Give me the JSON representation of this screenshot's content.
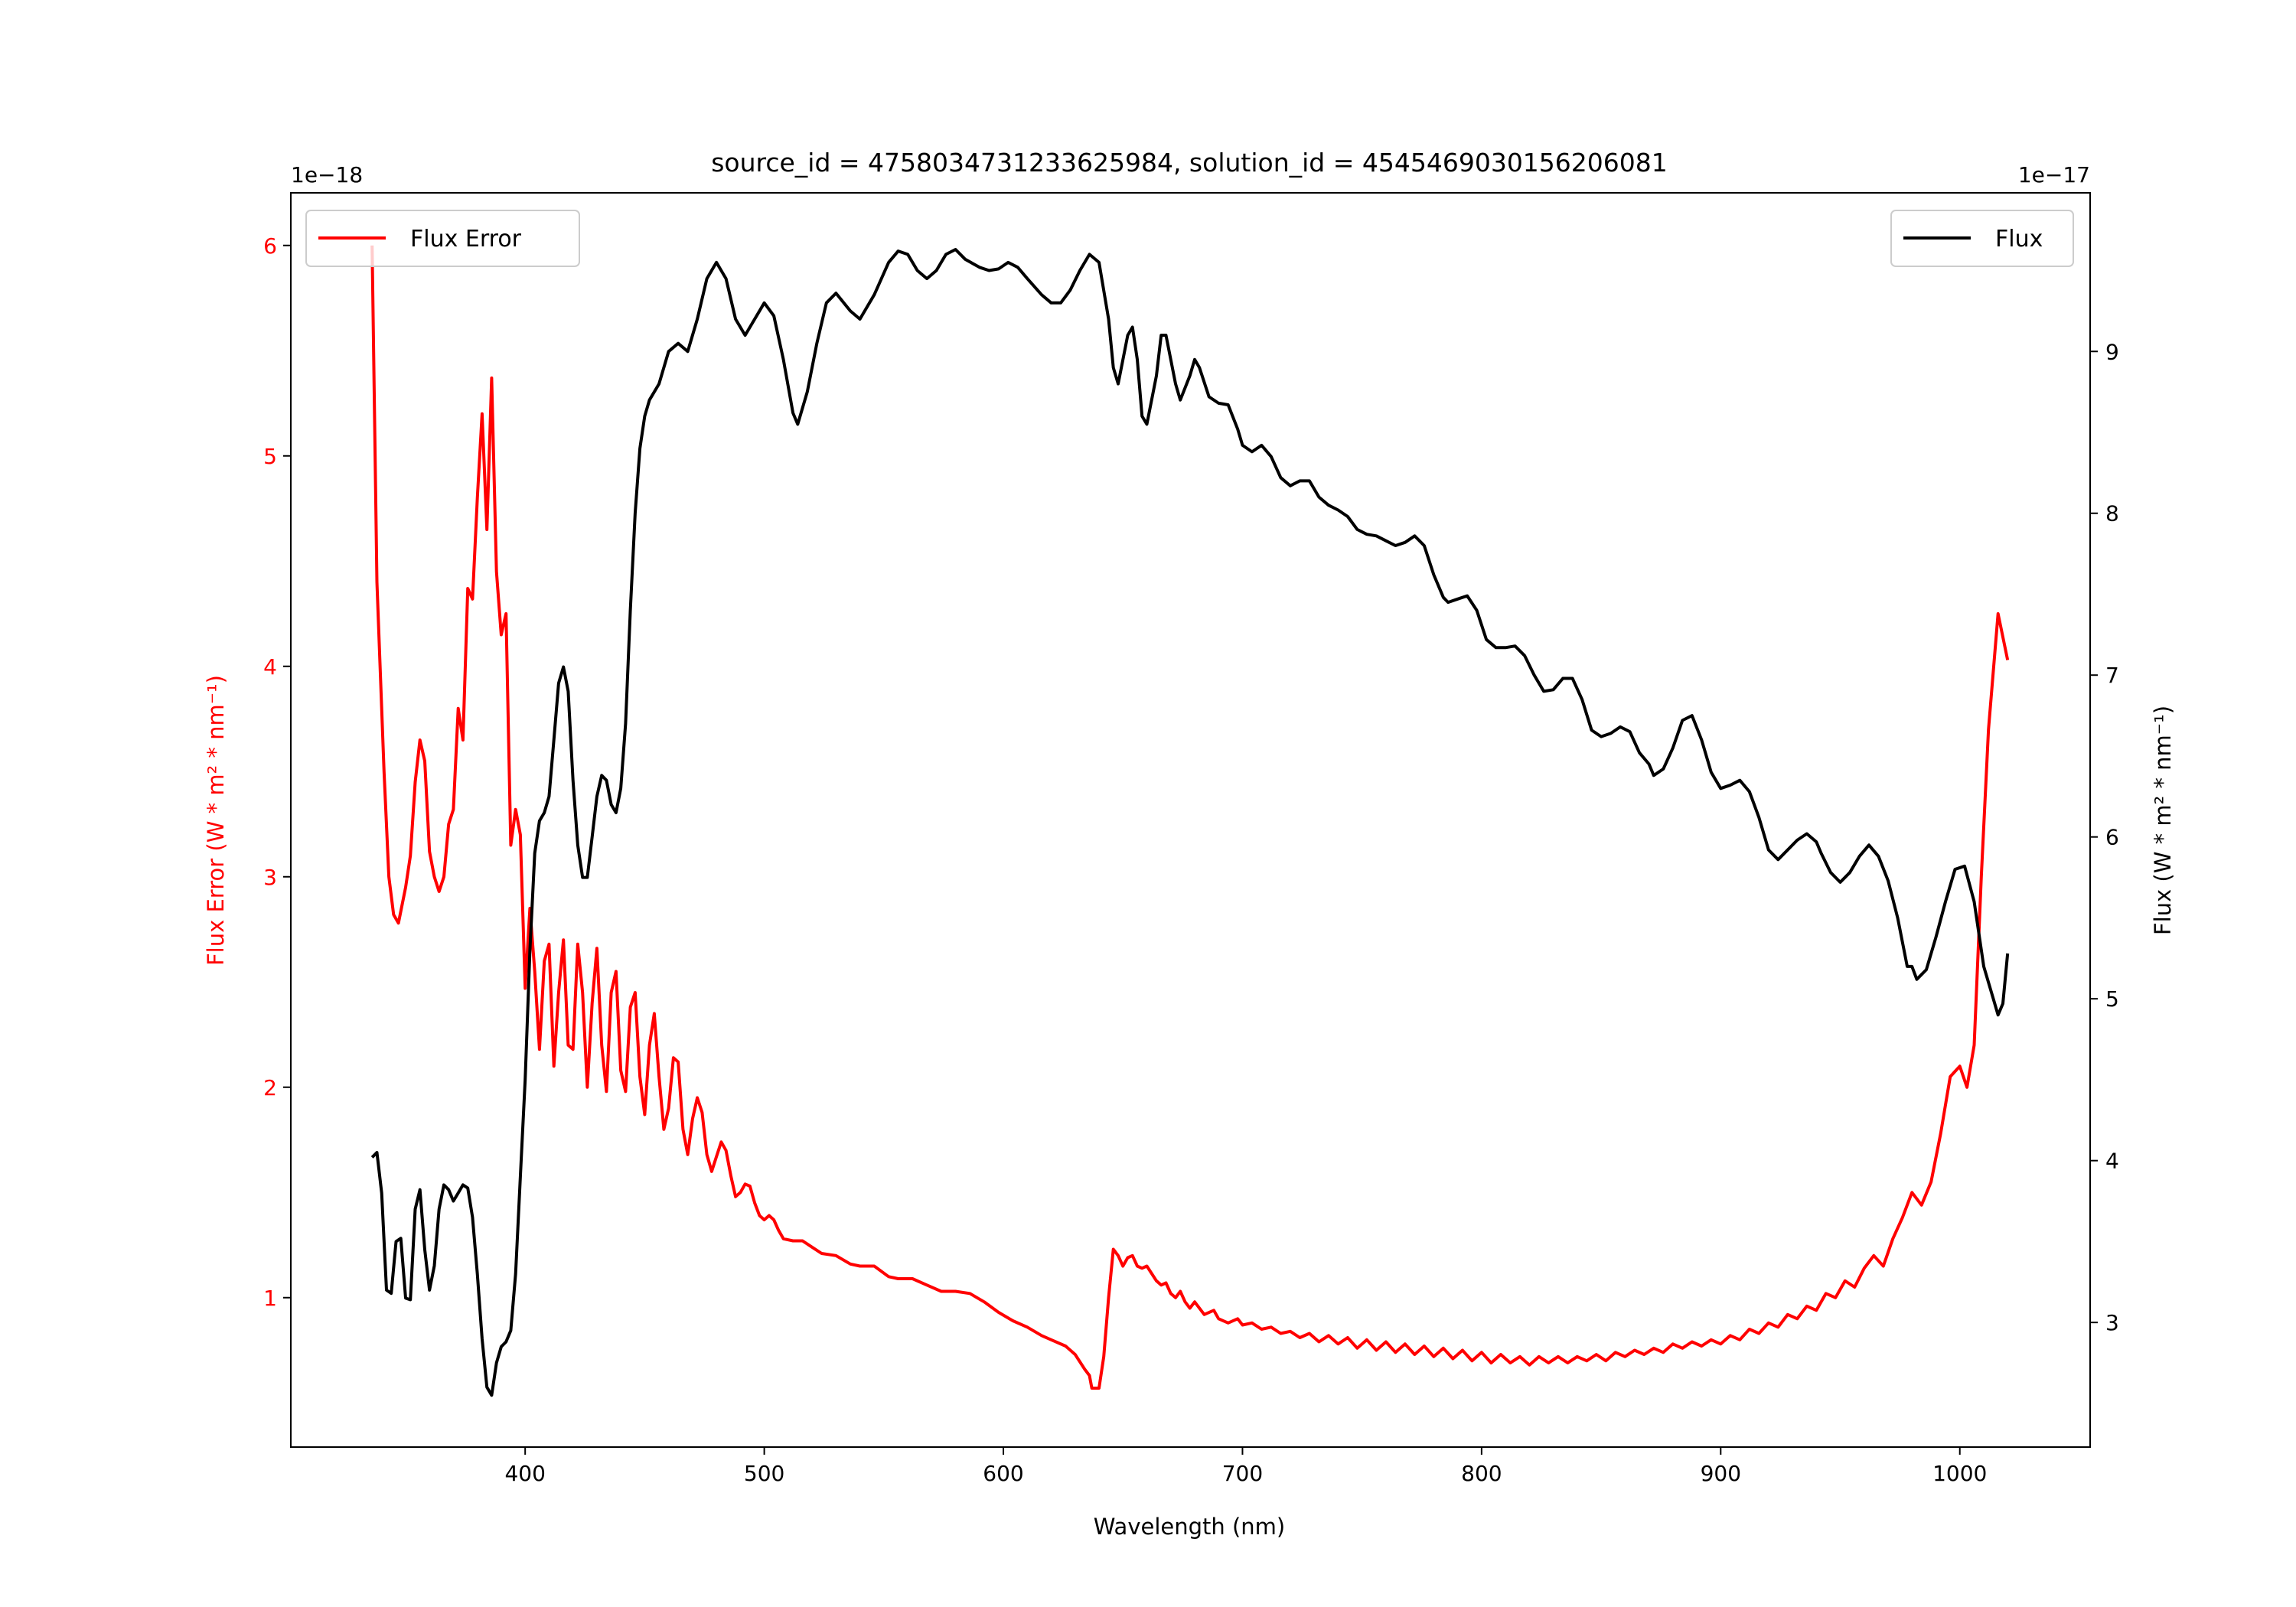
{
  "chart_data": {
    "type": "line",
    "title": "source_id = 4758034731233625984, solution_id = 4545469030156206081",
    "xlabel": "Wavelength (nm)",
    "ylabel_left": "Flux Error (W * m² * nm⁻¹)",
    "ylabel_right": "Flux (W * m² * nm⁻¹)",
    "left_offset_text": "1e−18",
    "right_offset_text": "1e−17",
    "xlim": [
      302,
      1054.5
    ],
    "ylim_left": [
      0.29,
      6.25
    ],
    "ylim_right": [
      2.23,
      9.98
    ],
    "xticks": [
      400,
      500,
      600,
      700,
      800,
      900,
      1000
    ],
    "xtick_labels": [
      "400",
      "500",
      "600",
      "700",
      "800",
      "900",
      "1000"
    ],
    "yticks_left": [
      1,
      2,
      3,
      4,
      5,
      6
    ],
    "ytick_labels_left": [
      "1",
      "2",
      "3",
      "4",
      "5",
      "6"
    ],
    "yticks_right": [
      3,
      4,
      5,
      6,
      7,
      8,
      9
    ],
    "ytick_labels_right": [
      "3",
      "4",
      "5",
      "6",
      "7",
      "8",
      "9"
    ],
    "grid": false,
    "legends": [
      {
        "label": "Flux Error",
        "color": "#ff0000",
        "placement": "upper-left"
      },
      {
        "label": "Flux",
        "color": "#000000",
        "placement": "upper-right"
      }
    ],
    "series": [
      {
        "name": "Flux Error",
        "axis": "left",
        "color": "#ff0000",
        "x": [
          336,
          338,
          341,
          343,
          345,
          347,
          350,
          352,
          354,
          356,
          358,
          360,
          362,
          364,
          366,
          368,
          370,
          372,
          374,
          376,
          378,
          380,
          382,
          384,
          386,
          388,
          390,
          392,
          394,
          396,
          398,
          400,
          402,
          404,
          406,
          408,
          410,
          412,
          414,
          416,
          418,
          420,
          422,
          424,
          426,
          428,
          430,
          432,
          434,
          436,
          438,
          440,
          442,
          444,
          446,
          448,
          450,
          452,
          454,
          456,
          458,
          460,
          462,
          464,
          466,
          468,
          470,
          472,
          474,
          476,
          478,
          480,
          482,
          484,
          486,
          488,
          490,
          492,
          494,
          496,
          498,
          500,
          502,
          504,
          506,
          508,
          512,
          516,
          520,
          524,
          530,
          536,
          540,
          546,
          552,
          556,
          562,
          568,
          574,
          580,
          586,
          592,
          598,
          604,
          610,
          616,
          620,
          626,
          630,
          634,
          636,
          637,
          640,
          642,
          644,
          646,
          648,
          650,
          652,
          654,
          656,
          658,
          660,
          664,
          666,
          668,
          670,
          672,
          674,
          676,
          678,
          680,
          684,
          688,
          690,
          694,
          698,
          700,
          704,
          708,
          712,
          716,
          720,
          724,
          728,
          732,
          736,
          740,
          744,
          748,
          752,
          756,
          760,
          764,
          768,
          772,
          776,
          780,
          784,
          788,
          792,
          796,
          800,
          804,
          808,
          812,
          816,
          820,
          824,
          828,
          832,
          836,
          840,
          844,
          848,
          852,
          856,
          860,
          864,
          868,
          872,
          876,
          880,
          884,
          888,
          892,
          896,
          900,
          904,
          908,
          912,
          916,
          920,
          924,
          928,
          932,
          936,
          940,
          944,
          948,
          952,
          956,
          960,
          964,
          968,
          972,
          976,
          980,
          984,
          988,
          992,
          996,
          1000,
          1003,
          1006,
          1009,
          1012,
          1016,
          1020
        ],
        "y": [
          6.0,
          4.4,
          3.5,
          3.0,
          2.82,
          2.78,
          2.95,
          3.1,
          3.45,
          3.65,
          3.55,
          3.12,
          3.0,
          2.93,
          3.0,
          3.25,
          3.32,
          3.8,
          3.65,
          4.37,
          4.32,
          4.8,
          5.2,
          4.65,
          5.37,
          4.45,
          4.15,
          4.25,
          3.15,
          3.32,
          3.2,
          2.47,
          2.85,
          2.55,
          2.18,
          2.6,
          2.68,
          2.1,
          2.45,
          2.7,
          2.2,
          2.18,
          2.68,
          2.45,
          2.0,
          2.4,
          2.66,
          2.2,
          1.98,
          2.45,
          2.55,
          2.08,
          1.98,
          2.38,
          2.45,
          2.05,
          1.87,
          2.2,
          2.35,
          2.05,
          1.8,
          1.9,
          2.14,
          2.12,
          1.8,
          1.68,
          1.85,
          1.95,
          1.88,
          1.68,
          1.6,
          1.67,
          1.74,
          1.7,
          1.58,
          1.48,
          1.5,
          1.54,
          1.53,
          1.45,
          1.39,
          1.37,
          1.39,
          1.37,
          1.32,
          1.28,
          1.27,
          1.27,
          1.24,
          1.21,
          1.2,
          1.16,
          1.15,
          1.15,
          1.1,
          1.09,
          1.09,
          1.06,
          1.03,
          1.03,
          1.02,
          0.98,
          0.93,
          0.89,
          0.86,
          0.82,
          0.8,
          0.77,
          0.73,
          0.66,
          0.63,
          0.57,
          0.57,
          0.72,
          1.0,
          1.23,
          1.2,
          1.15,
          1.19,
          1.2,
          1.15,
          1.14,
          1.15,
          1.08,
          1.06,
          1.07,
          1.02,
          1.0,
          1.03,
          0.98,
          0.95,
          0.98,
          0.92,
          0.94,
          0.9,
          0.88,
          0.9,
          0.87,
          0.88,
          0.85,
          0.86,
          0.83,
          0.84,
          0.81,
          0.83,
          0.79,
          0.82,
          0.78,
          0.81,
          0.76,
          0.8,
          0.75,
          0.79,
          0.74,
          0.78,
          0.73,
          0.77,
          0.72,
          0.76,
          0.71,
          0.75,
          0.7,
          0.74,
          0.69,
          0.73,
          0.69,
          0.72,
          0.68,
          0.72,
          0.69,
          0.72,
          0.69,
          0.72,
          0.7,
          0.73,
          0.7,
          0.74,
          0.72,
          0.75,
          0.73,
          0.76,
          0.74,
          0.78,
          0.76,
          0.79,
          0.77,
          0.8,
          0.78,
          0.82,
          0.8,
          0.85,
          0.83,
          0.88,
          0.86,
          0.92,
          0.9,
          0.96,
          0.94,
          1.02,
          1.0,
          1.08,
          1.05,
          1.14,
          1.2,
          1.15,
          1.28,
          1.38,
          1.5,
          1.44,
          1.55,
          1.78,
          2.05,
          2.1,
          2.0,
          2.2,
          3.0,
          3.7,
          4.25,
          4.03
        ]
      },
      {
        "name": "Flux",
        "axis": "right",
        "color": "#000000",
        "x": [
          336,
          338,
          340,
          342,
          344,
          346,
          348,
          350,
          352,
          354,
          356,
          358,
          360,
          362,
          364,
          366,
          368,
          370,
          372,
          374,
          376,
          378,
          380,
          382,
          384,
          386,
          388,
          390,
          392,
          394,
          396,
          398,
          400,
          402,
          404,
          406,
          408,
          410,
          412,
          414,
          416,
          418,
          420,
          422,
          424,
          426,
          428,
          430,
          432,
          434,
          436,
          438,
          440,
          442,
          444,
          446,
          448,
          450,
          452,
          456,
          460,
          464,
          468,
          472,
          476,
          480,
          484,
          488,
          492,
          496,
          500,
          504,
          508,
          512,
          514,
          518,
          522,
          526,
          530,
          536,
          540,
          546,
          552,
          556,
          560,
          564,
          568,
          572,
          576,
          580,
          584,
          590,
          594,
          598,
          602,
          606,
          610,
          616,
          620,
          624,
          628,
          632,
          636,
          640,
          644,
          646,
          648,
          652,
          654,
          656,
          658,
          660,
          664,
          666,
          668,
          672,
          674,
          678,
          680,
          682,
          686,
          690,
          694,
          698,
          700,
          704,
          708,
          712,
          716,
          720,
          724,
          728,
          732,
          736,
          740,
          744,
          748,
          752,
          756,
          760,
          764,
          768,
          772,
          776,
          780,
          784,
          786,
          790,
          794,
          798,
          802,
          806,
          810,
          814,
          818,
          822,
          826,
          830,
          834,
          838,
          842,
          846,
          850,
          854,
          858,
          862,
          866,
          870,
          872,
          876,
          880,
          884,
          888,
          892,
          896,
          900,
          904,
          908,
          912,
          916,
          920,
          924,
          928,
          932,
          936,
          940,
          942,
          946,
          950,
          954,
          958,
          962,
          966,
          970,
          974,
          978,
          980,
          982,
          986,
          990,
          994,
          998,
          1002,
          1006,
          1010,
          1014,
          1016,
          1018,
          1020
        ],
        "y": [
          4.02,
          4.05,
          3.8,
          3.2,
          3.18,
          3.5,
          3.52,
          3.15,
          3.14,
          3.7,
          3.82,
          3.45,
          3.2,
          3.35,
          3.7,
          3.85,
          3.82,
          3.75,
          3.8,
          3.85,
          3.83,
          3.65,
          3.3,
          2.9,
          2.6,
          2.55,
          2.75,
          2.85,
          2.88,
          2.95,
          3.3,
          3.9,
          4.5,
          5.3,
          5.9,
          6.1,
          6.15,
          6.25,
          6.6,
          6.95,
          7.05,
          6.9,
          6.35,
          5.95,
          5.75,
          5.75,
          6.0,
          6.25,
          6.38,
          6.35,
          6.2,
          6.15,
          6.3,
          6.7,
          7.4,
          8.0,
          8.4,
          8.6,
          8.7,
          8.8,
          9.0,
          9.05,
          9.0,
          9.2,
          9.45,
          9.55,
          9.45,
          9.2,
          9.1,
          9.2,
          9.3,
          9.22,
          8.95,
          8.62,
          8.55,
          8.75,
          9.05,
          9.3,
          9.36,
          9.25,
          9.2,
          9.35,
          9.55,
          9.62,
          9.6,
          9.5,
          9.45,
          9.5,
          9.6,
          9.63,
          9.57,
          9.52,
          9.5,
          9.51,
          9.55,
          9.52,
          9.45,
          9.35,
          9.3,
          9.3,
          9.38,
          9.5,
          9.6,
          9.55,
          9.2,
          8.9,
          8.8,
          9.1,
          9.15,
          8.95,
          8.6,
          8.55,
          8.85,
          9.1,
          9.1,
          8.8,
          8.7,
          8.85,
          8.95,
          8.9,
          8.72,
          8.68,
          8.67,
          8.52,
          8.42,
          8.38,
          8.42,
          8.35,
          8.22,
          8.17,
          8.2,
          8.2,
          8.1,
          8.05,
          8.02,
          7.98,
          7.9,
          7.87,
          7.86,
          7.83,
          7.8,
          7.82,
          7.86,
          7.8,
          7.62,
          7.48,
          7.45,
          7.47,
          7.49,
          7.4,
          7.22,
          7.17,
          7.17,
          7.18,
          7.12,
          7.0,
          6.9,
          6.91,
          6.98,
          6.98,
          6.85,
          6.66,
          6.62,
          6.64,
          6.68,
          6.65,
          6.52,
          6.45,
          6.38,
          6.42,
          6.55,
          6.72,
          6.75,
          6.6,
          6.4,
          6.3,
          6.32,
          6.35,
          6.28,
          6.12,
          5.92,
          5.86,
          5.92,
          5.98,
          6.02,
          5.97,
          5.9,
          5.78,
          5.72,
          5.78,
          5.88,
          5.95,
          5.88,
          5.73,
          5.5,
          5.2,
          5.2,
          5.12,
          5.18,
          5.38,
          5.6,
          5.8,
          5.82,
          5.6,
          5.2,
          5.0,
          4.9,
          4.97,
          5.28
        ]
      }
    ]
  }
}
